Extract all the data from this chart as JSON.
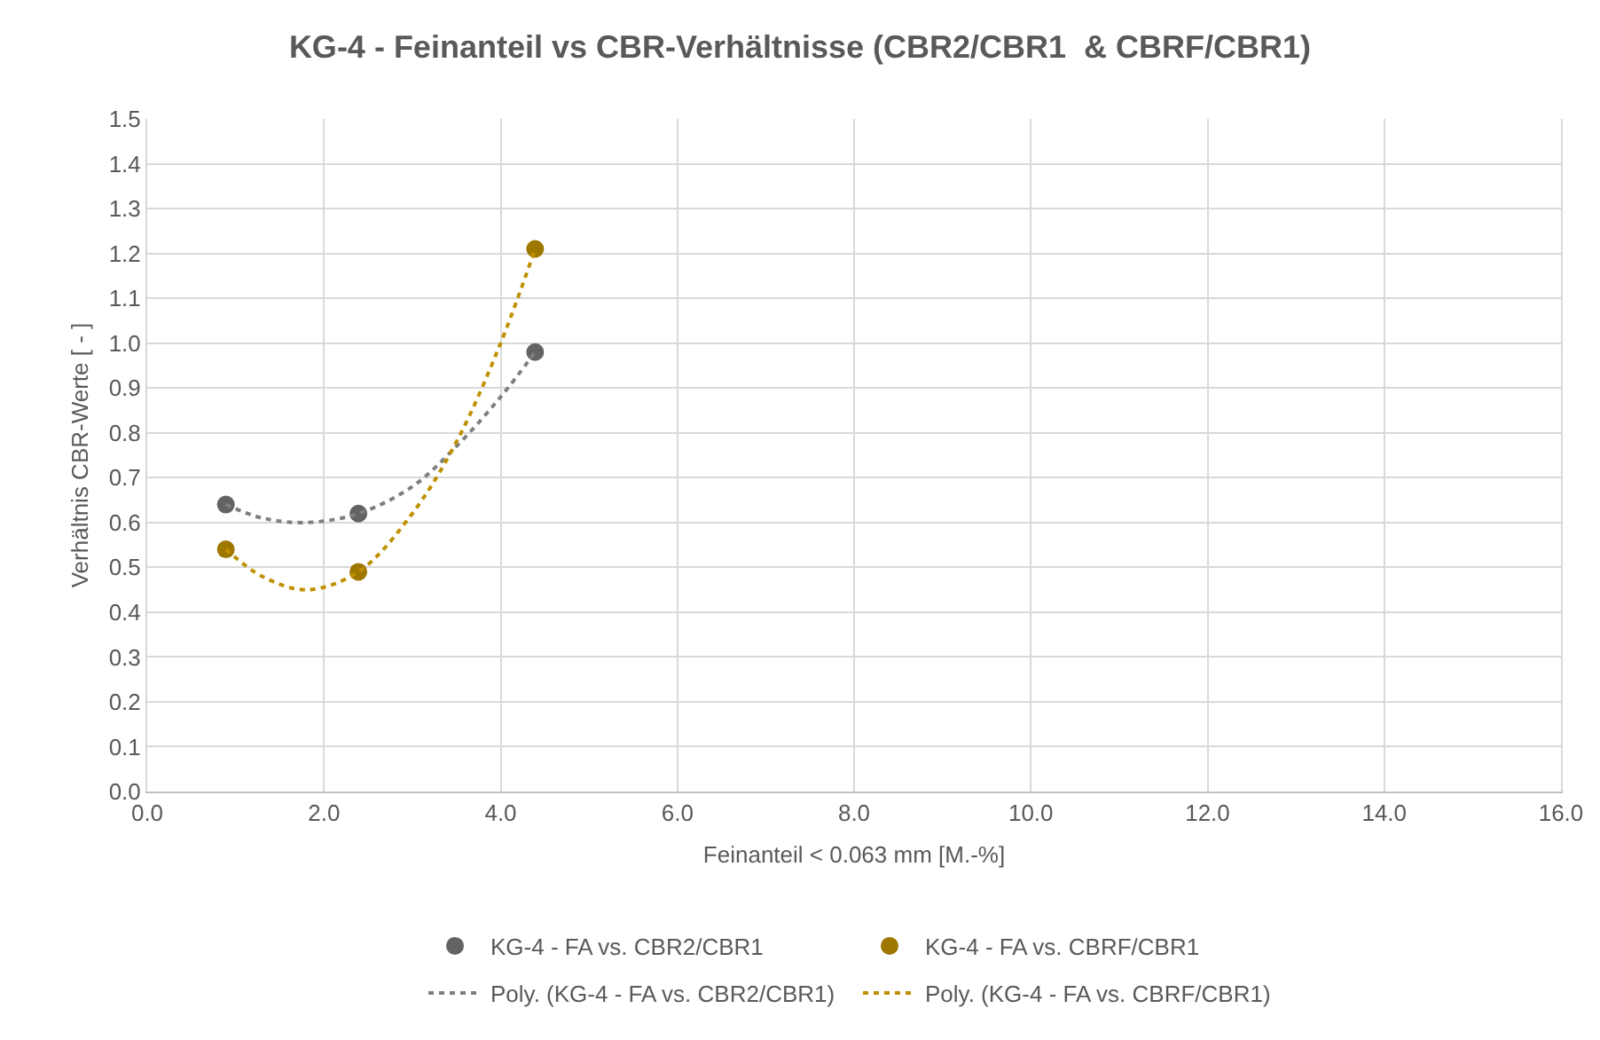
{
  "chart_data": {
    "type": "scatter",
    "title": "KG-4 - Feinanteil vs CBR-Verhältnisse (CBR2/CBR1  & CBRF/CBR1)",
    "xlabel": "Feinanteil < 0.063 mm [M.-%]",
    "ylabel": "Verhältnis CBR-Werte [ - ]",
    "x": [
      0.89,
      2.39,
      4.39
    ],
    "series": [
      {
        "name": "KG-4 - FA vs. CBR2/CBR1",
        "type": "scatter",
        "color": "#636363",
        "marker": "circle",
        "values": [
          0.64,
          0.62,
          0.98
        ]
      },
      {
        "name": "KG-4 - FA vs. CBRF/CBR1",
        "color": "#9e7700",
        "marker": "circle",
        "values": [
          0.54,
          0.49,
          1.21
        ]
      },
      {
        "name": "Poly. (KG-4 - FA vs. CBR2/CBR1)",
        "type": "line",
        "color": "#7f7f7f",
        "line_style": "dotted",
        "marker": "none",
        "x": [
          0.89,
          1.3,
          1.8,
          2.39,
          3.0,
          3.5,
          4.0,
          4.39
        ],
        "values": [
          0.64,
          0.61,
          0.6,
          0.62,
          0.68,
          0.77,
          0.88,
          0.98
        ]
      },
      {
        "name": "Poly. (KG-4 - FA vs. CBRF/CBR1)",
        "type": "line",
        "color": "#bf9000",
        "line_style": "dotted",
        "marker": "none",
        "x": [
          0.89,
          1.3,
          1.8,
          2.39,
          3.0,
          3.5,
          4.0,
          4.39
        ],
        "values": [
          0.54,
          0.48,
          0.45,
          0.49,
          0.62,
          0.78,
          1.0,
          1.21
        ]
      }
    ],
    "xlim": [
      0,
      16
    ],
    "xticks": [
      {
        "value": 0,
        "label": "0.0"
      },
      {
        "value": 2,
        "label": "2.0"
      },
      {
        "value": 4,
        "label": "4.0"
      },
      {
        "value": 6,
        "label": "6.0"
      },
      {
        "value": 8,
        "label": "8.0"
      },
      {
        "value": 10,
        "label": "10.0"
      },
      {
        "value": 12,
        "label": "12.0"
      },
      {
        "value": 14,
        "label": "14.0"
      },
      {
        "value": 16,
        "label": "16.0"
      }
    ],
    "ylim": [
      0,
      1.5
    ],
    "yticks": [
      {
        "value": 0,
        "label": "0.0"
      },
      0.1,
      0.2,
      0.3,
      0.4,
      0.5,
      0.6,
      0.7,
      0.8,
      0.9,
      {
        "value": 1,
        "label": "1.0"
      },
      1.1,
      1.2,
      1.3,
      1.4,
      1.5
    ],
    "grid": true,
    "legend": "bottom"
  }
}
